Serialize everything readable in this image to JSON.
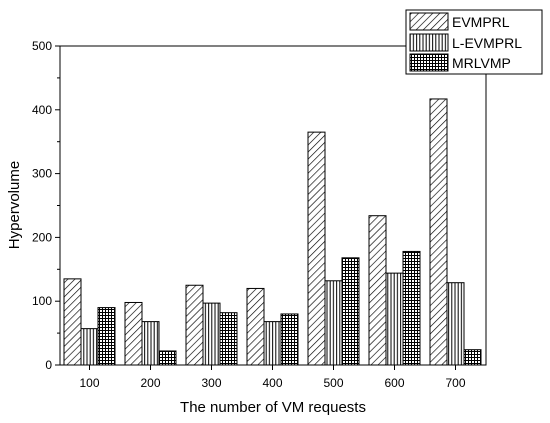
{
  "chart_data": {
    "type": "bar",
    "title": "",
    "xlabel": "The number of VM requests",
    "ylabel": "Hypervolume",
    "categories": [
      "100",
      "200",
      "300",
      "400",
      "500",
      "600",
      "700"
    ],
    "ylim": [
      0,
      500
    ],
    "yticks": [
      0,
      100,
      200,
      300,
      400,
      500
    ],
    "grid": false,
    "legend_position": "top-right",
    "series": [
      {
        "name": "EVMPRL",
        "values": [
          135,
          98,
          125,
          120,
          365,
          234,
          417
        ],
        "pattern": "diagonal-hatch"
      },
      {
        "name": "L-EVMPRL",
        "values": [
          57,
          68,
          97,
          68,
          132,
          144,
          129
        ],
        "pattern": "vertical-lines"
      },
      {
        "name": "MRLVMP",
        "values": [
          90,
          22,
          82,
          80,
          168,
          178,
          24
        ],
        "pattern": "grid"
      }
    ]
  }
}
